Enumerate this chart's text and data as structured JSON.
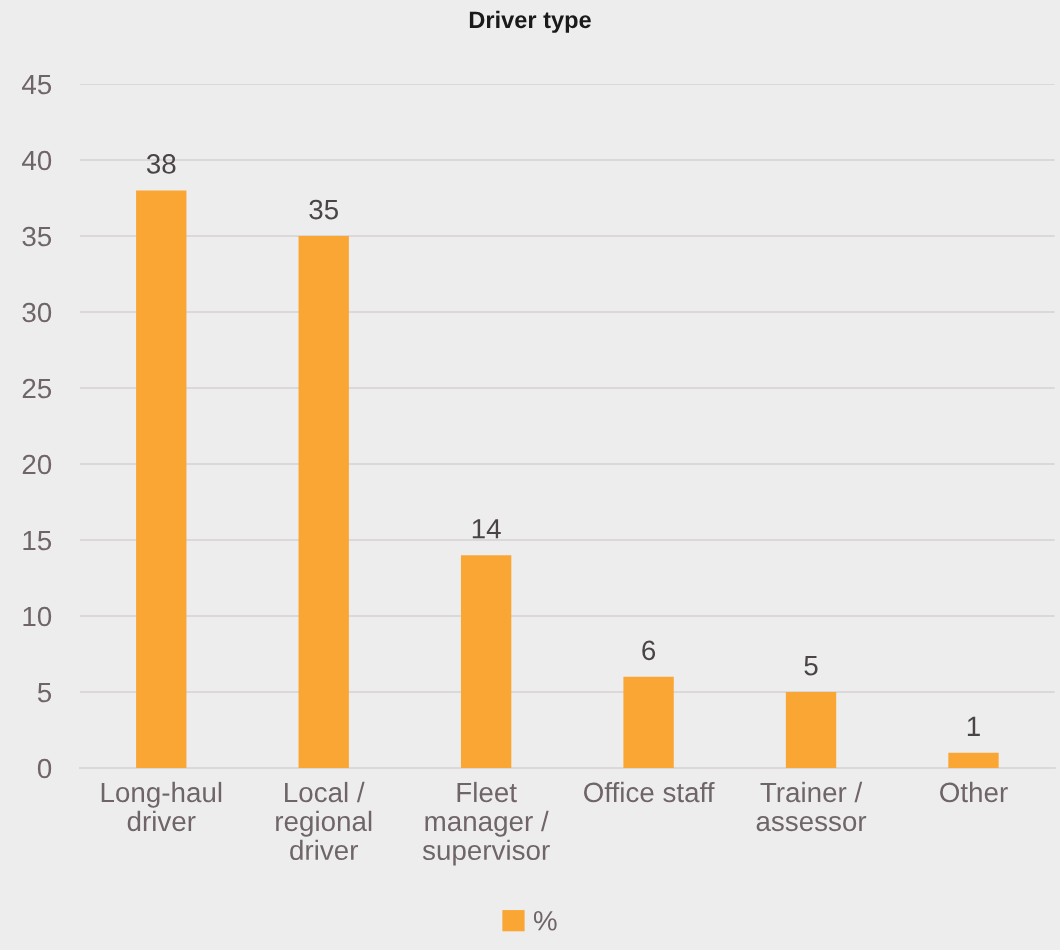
{
  "chart_data": {
    "type": "bar",
    "title": "Driver type",
    "categories": [
      "Long-haul\ndriver",
      "Local /\nregional\ndriver",
      "Fleet\nmanager /\nsupervisor",
      "Office staff",
      "Trainer /\nassessor",
      "Other"
    ],
    "series": [
      {
        "name": "%",
        "color": "#f9a634",
        "values": [
          38,
          35,
          14,
          6,
          5,
          1
        ]
      }
    ],
    "ylim": [
      0,
      45
    ],
    "yticks": [
      0,
      5,
      10,
      15,
      20,
      25,
      30,
      35,
      40,
      45
    ],
    "grid": "y",
    "legend": "bottom",
    "data_labels": true
  }
}
